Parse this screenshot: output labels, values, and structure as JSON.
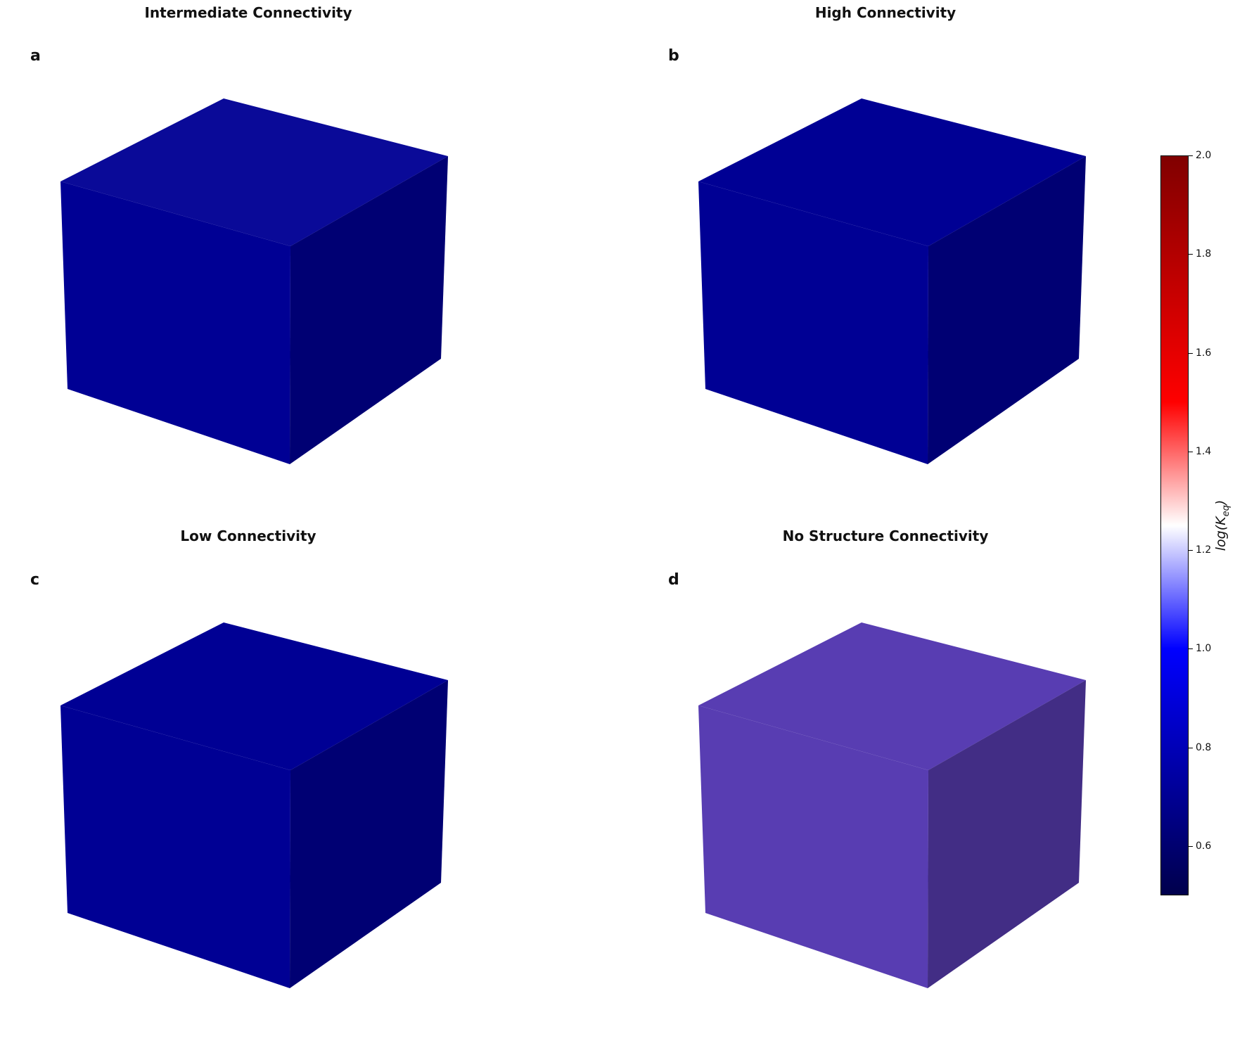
{
  "panels": [
    {
      "letter": "a",
      "title": "Intermediate Connectivity",
      "pattern": "intermediate"
    },
    {
      "letter": "b",
      "title": "High Connectivity",
      "pattern": "high"
    },
    {
      "letter": "c",
      "title": "Low Connectivity",
      "pattern": "low"
    },
    {
      "letter": "d",
      "title": "No Structure Connectivity",
      "pattern": "noise"
    }
  ],
  "colorbar": {
    "label": "log(K_eq)",
    "min": 0.5,
    "max": 2.0,
    "ticks": [
      "0.6",
      "0.8",
      "1.0",
      "1.2",
      "1.4",
      "1.6",
      "1.8",
      "2.0"
    ],
    "colors": [
      "#00004c",
      "#0000ff",
      "#ffffff",
      "#ff0000",
      "#800000"
    ]
  }
}
